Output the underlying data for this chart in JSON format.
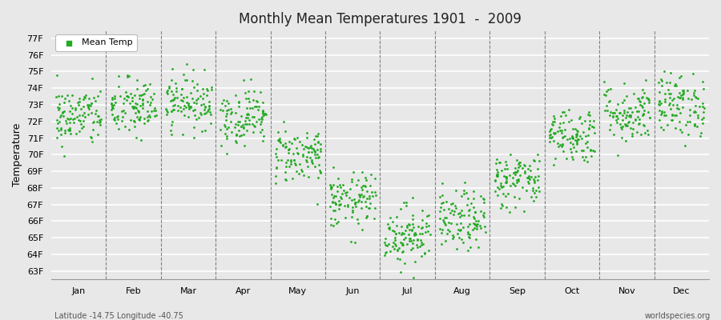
{
  "title": "Monthly Mean Temperatures 1901  -  2009",
  "ylabel": "Temperature",
  "xlabel_labels": [
    "Jan",
    "Feb",
    "Mar",
    "Apr",
    "May",
    "Jun",
    "Jul",
    "Aug",
    "Sep",
    "Oct",
    "Nov",
    "Dec"
  ],
  "ylim": [
    62.5,
    77.5
  ],
  "ytick_labels": [
    "63F",
    "64F",
    "65F",
    "66F",
    "67F",
    "68F",
    "69F",
    "70F",
    "71F",
    "72F",
    "73F",
    "74F",
    "75F",
    "76F",
    "77F"
  ],
  "ytick_values": [
    63,
    64,
    65,
    66,
    67,
    68,
    69,
    70,
    71,
    72,
    73,
    74,
    75,
    76,
    77
  ],
  "dot_color": "#22aa22",
  "dot_size": 4,
  "background_color": "#e8e8e8",
  "grid_color": "#ffffff",
  "footer_left": "Latitude -14.75 Longitude -40.75",
  "footer_right": "worldspecies.org",
  "legend_label": "Mean Temp",
  "n_years": 109,
  "month_mean_temps_F": [
    72.3,
    72.8,
    73.2,
    72.3,
    70.0,
    67.2,
    65.2,
    66.0,
    68.5,
    71.2,
    72.5,
    73.0
  ],
  "month_std_F": [
    0.9,
    0.9,
    0.8,
    0.85,
    0.85,
    0.85,
    0.9,
    0.9,
    0.85,
    0.85,
    0.9,
    0.95
  ]
}
